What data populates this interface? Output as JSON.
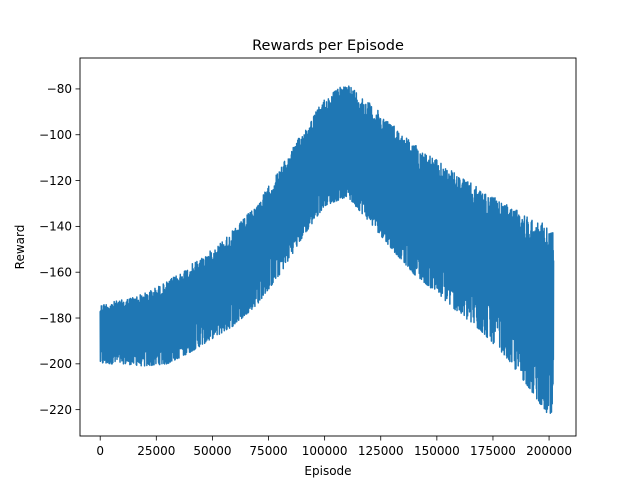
{
  "chart_data": {
    "type": "line",
    "title": "Rewards per Episode",
    "xlabel": "Episode",
    "ylabel": "Reward",
    "xlim": [
      -9000,
      212000
    ],
    "ylim": [
      -231.5,
      -66.5
    ],
    "xticks": [
      0,
      25000,
      50000,
      75000,
      100000,
      125000,
      150000,
      175000,
      200000
    ],
    "xtick_labels": [
      "0",
      "25000",
      "50000",
      "75000",
      "100000",
      "125000",
      "150000",
      "175000",
      "200000"
    ],
    "yticks": [
      -220,
      -200,
      -180,
      -160,
      -140,
      -120,
      -100,
      -80
    ],
    "ytick_labels": [
      "−220",
      "−200",
      "−180",
      "−160",
      "−140",
      "−120",
      "−100",
      "−80"
    ],
    "grid": false,
    "series": [
      {
        "color": "#1f77b4",
        "episodes": [
          0,
          202000
        ],
        "envelope": {
          "x": [
            0,
            10000,
            20000,
            30000,
            40000,
            50000,
            60000,
            70000,
            80000,
            90000,
            100000,
            110000,
            120000,
            130000,
            140000,
            150000,
            160000,
            170000,
            180000,
            190000,
            200000,
            202000
          ],
          "upper": [
            -174,
            -172,
            -169,
            -164,
            -157,
            -150,
            -141,
            -130,
            -115,
            -99,
            -84,
            -77,
            -86,
            -95,
            -104,
            -111,
            -118,
            -124,
            -130,
            -135,
            -140,
            -142
          ],
          "lower": [
            -200,
            -200,
            -201,
            -200,
            -195,
            -189,
            -183,
            -174,
            -161,
            -145,
            -131,
            -127,
            -138,
            -150,
            -161,
            -169,
            -178,
            -186,
            -196,
            -209,
            -223,
            -229
          ]
        }
      }
    ]
  }
}
